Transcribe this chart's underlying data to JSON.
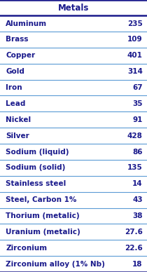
{
  "title": "Metals",
  "rows": [
    [
      "Aluminum",
      "235"
    ],
    [
      "Brass",
      "109"
    ],
    [
      "Copper",
      "401"
    ],
    [
      "Gold",
      "314"
    ],
    [
      "Iron",
      "67"
    ],
    [
      "Lead",
      "35"
    ],
    [
      "Nickel",
      "91"
    ],
    [
      "Silver",
      "428"
    ],
    [
      "Sodium (liquid)",
      "86"
    ],
    [
      "Sodium (solid)",
      "135"
    ],
    [
      "Stainless steel",
      "14"
    ],
    [
      "Steel, Carbon 1%",
      "43"
    ],
    [
      "Thorium (metalic)",
      "38"
    ],
    [
      "Uranium (metalic)",
      "27.6"
    ],
    [
      "Zirconium",
      "22.6"
    ],
    [
      "Zirconium alloy (1% Nb)",
      "18"
    ]
  ],
  "bg_color": "#ffffff",
  "text_color": "#1a1a8c",
  "header_color": "#1a1a8c",
  "line_color_outer": "#1a1a8c",
  "line_color_inner": "#5b9bd5",
  "font_size": 7.5,
  "title_font_size": 8.5
}
